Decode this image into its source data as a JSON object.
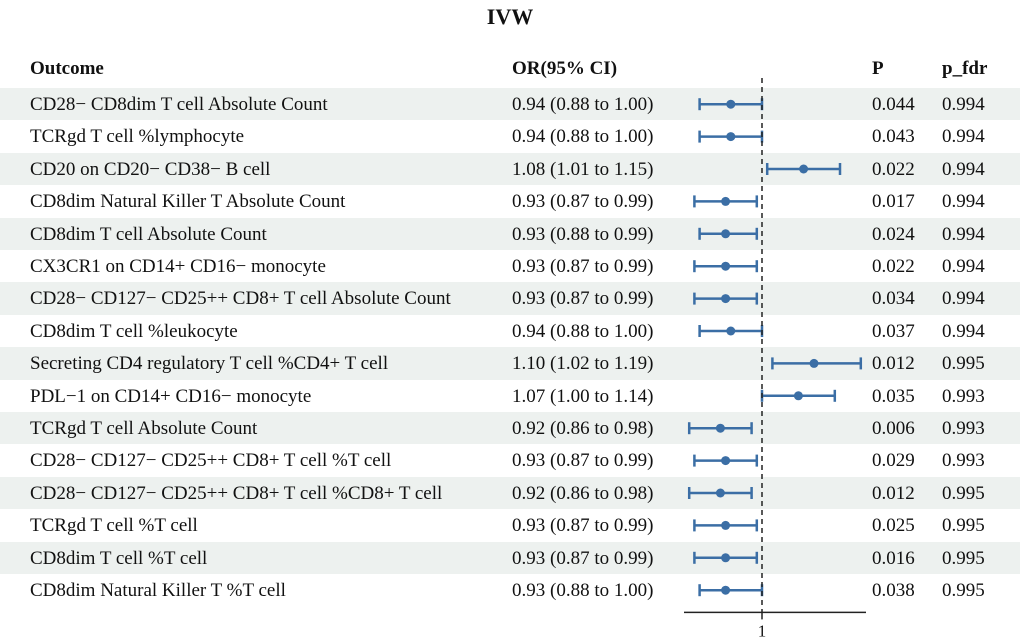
{
  "chart_data": {
    "type": "forest",
    "title": "IVW",
    "headers": {
      "outcome": "Outcome",
      "or": "OR(95% CI)",
      "p": "P",
      "p_fdr": "p_fdr"
    },
    "reference_line": 1,
    "x_tick_label": "1",
    "xlim": [
      0.85,
      1.2
    ],
    "colors": {
      "point": "#3b6ea5",
      "stripe": "#edf1ef",
      "axis": "#222222"
    },
    "rows": [
      {
        "outcome": "CD28− CD8dim T cell Absolute Count",
        "or_text": "0.94 (0.88 to 1.00)",
        "or": 0.94,
        "lo": 0.88,
        "hi": 1.0,
        "p": "0.044",
        "p_fdr": "0.994"
      },
      {
        "outcome": "TCRgd T cell %lymphocyte",
        "or_text": "0.94 (0.88 to 1.00)",
        "or": 0.94,
        "lo": 0.88,
        "hi": 1.0,
        "p": "0.043",
        "p_fdr": "0.994"
      },
      {
        "outcome": "CD20 on CD20− CD38− B cell",
        "or_text": "1.08 (1.01 to 1.15)",
        "or": 1.08,
        "lo": 1.01,
        "hi": 1.15,
        "p": "0.022",
        "p_fdr": "0.994"
      },
      {
        "outcome": "CD8dim Natural Killer T Absolute Count",
        "or_text": "0.93 (0.87 to 0.99)",
        "or": 0.93,
        "lo": 0.87,
        "hi": 0.99,
        "p": "0.017",
        "p_fdr": "0.994"
      },
      {
        "outcome": "CD8dim T cell Absolute Count",
        "or_text": "0.93 (0.88 to 0.99)",
        "or": 0.93,
        "lo": 0.88,
        "hi": 0.99,
        "p": "0.024",
        "p_fdr": "0.994"
      },
      {
        "outcome": "CX3CR1 on CD14+ CD16− monocyte",
        "or_text": "0.93 (0.87 to 0.99)",
        "or": 0.93,
        "lo": 0.87,
        "hi": 0.99,
        "p": "0.022",
        "p_fdr": "0.994"
      },
      {
        "outcome": "CD28− CD127− CD25++ CD8+ T cell Absolute Count",
        "or_text": "0.93 (0.87 to 0.99)",
        "or": 0.93,
        "lo": 0.87,
        "hi": 0.99,
        "p": "0.034",
        "p_fdr": "0.994"
      },
      {
        "outcome": "CD8dim T cell %leukocyte",
        "or_text": "0.94 (0.88 to 1.00)",
        "or": 0.94,
        "lo": 0.88,
        "hi": 1.0,
        "p": "0.037",
        "p_fdr": "0.994"
      },
      {
        "outcome": "Secreting CD4 regulatory T cell %CD4+ T cell",
        "or_text": "1.10 (1.02 to 1.19)",
        "or": 1.1,
        "lo": 1.02,
        "hi": 1.19,
        "p": "0.012",
        "p_fdr": "0.995"
      },
      {
        "outcome": "PDL−1 on CD14+ CD16− monocyte",
        "or_text": "1.07 (1.00 to 1.14)",
        "or": 1.07,
        "lo": 1.0,
        "hi": 1.14,
        "p": "0.035",
        "p_fdr": "0.993"
      },
      {
        "outcome": "TCRgd T cell Absolute Count",
        "or_text": "0.92 (0.86 to 0.98)",
        "or": 0.92,
        "lo": 0.86,
        "hi": 0.98,
        "p": "0.006",
        "p_fdr": "0.993"
      },
      {
        "outcome": "CD28− CD127− CD25++ CD8+ T cell %T cell",
        "or_text": "0.93 (0.87 to 0.99)",
        "or": 0.93,
        "lo": 0.87,
        "hi": 0.99,
        "p": "0.029",
        "p_fdr": "0.993"
      },
      {
        "outcome": "CD28− CD127− CD25++ CD8+ T cell %CD8+ T cell",
        "or_text": "0.92 (0.86 to 0.98)",
        "or": 0.92,
        "lo": 0.86,
        "hi": 0.98,
        "p": "0.012",
        "p_fdr": "0.995"
      },
      {
        "outcome": "TCRgd T cell %T cell",
        "or_text": "0.93 (0.87 to 0.99)",
        "or": 0.93,
        "lo": 0.87,
        "hi": 0.99,
        "p": "0.025",
        "p_fdr": "0.995"
      },
      {
        "outcome": "CD8dim T cell %T cell",
        "or_text": "0.93 (0.87 to 0.99)",
        "or": 0.93,
        "lo": 0.87,
        "hi": 0.99,
        "p": "0.016",
        "p_fdr": "0.995"
      },
      {
        "outcome": "CD8dim Natural Killer T %T cell",
        "or_text": "0.93 (0.88 to 1.00)",
        "or": 0.93,
        "lo": 0.88,
        "hi": 1.0,
        "p": "0.038",
        "p_fdr": "0.995"
      }
    ]
  }
}
